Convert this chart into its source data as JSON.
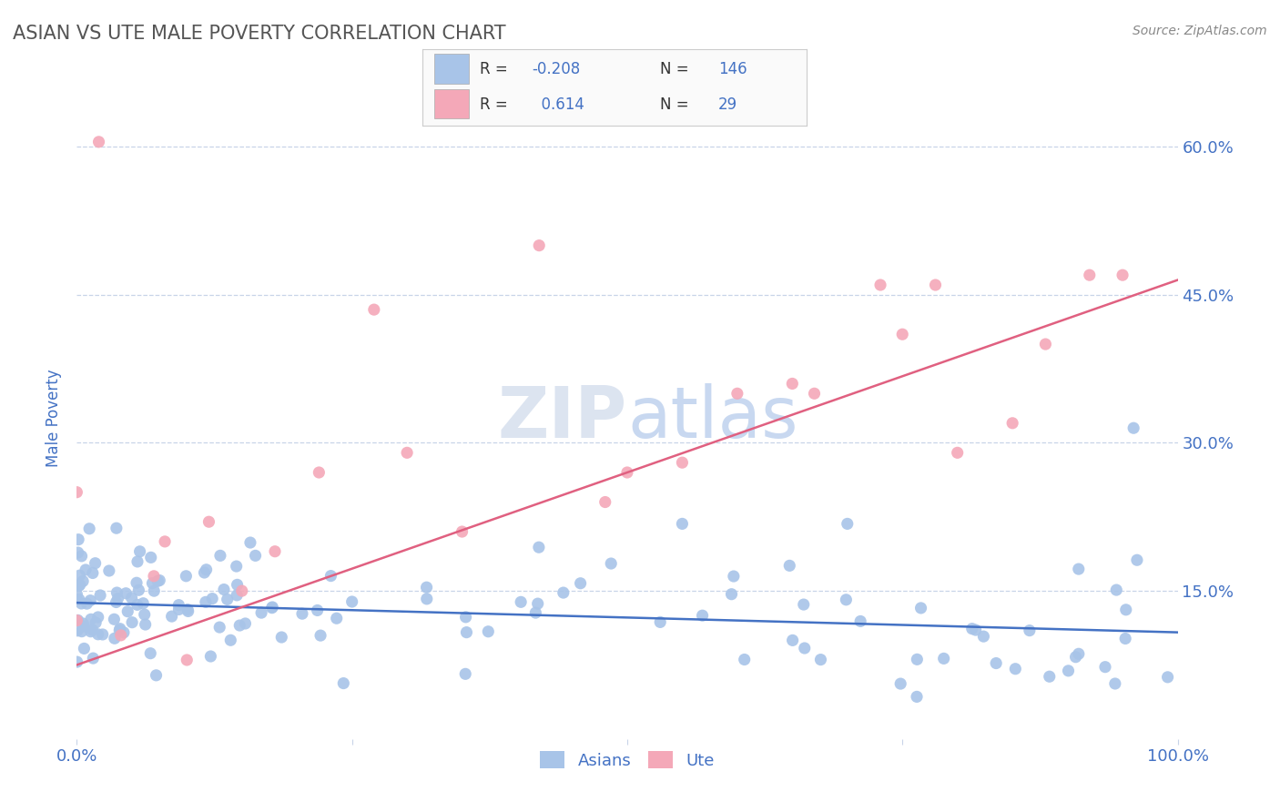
{
  "title": "ASIAN VS UTE MALE POVERTY CORRELATION CHART",
  "source_text": "Source: ZipAtlas.com",
  "ylabel": "Male Poverty",
  "xmin": 0.0,
  "xmax": 1.0,
  "ymin": 0.0,
  "ymax": 0.65,
  "yticks": [
    0.0,
    0.15,
    0.3,
    0.45,
    0.6
  ],
  "ytick_labels": [
    "",
    "15.0%",
    "30.0%",
    "45.0%",
    "60.0%"
  ],
  "xticks": [
    0.0,
    0.25,
    0.5,
    0.75,
    1.0
  ],
  "xtick_labels": [
    "0.0%",
    "",
    "",
    "",
    "100.0%"
  ],
  "asian_color": "#a8c4e8",
  "ute_color": "#f4a8b8",
  "asian_line_color": "#4472c4",
  "ute_line_color": "#e06080",
  "text_color": "#4472c4",
  "background_color": "#ffffff",
  "watermark_color": "#dce4f0",
  "grid_color": "#c8d4e8",
  "title_color": "#555555",
  "source_color": "#888888",
  "asian_line_y0": 0.138,
  "asian_line_y1": 0.108,
  "ute_line_y0": 0.075,
  "ute_line_y1": 0.465
}
